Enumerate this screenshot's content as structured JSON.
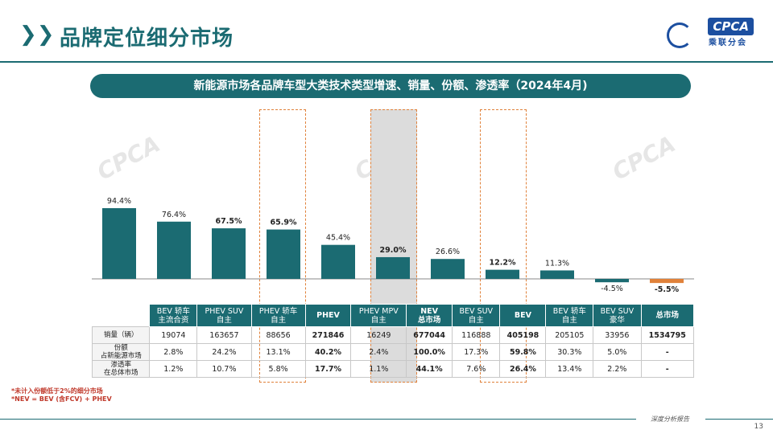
{
  "header": {
    "title": "品牌定位细分市场",
    "chevron_glyph": "❯❯",
    "logo_text": "CPCA",
    "logo_sub": "乘联分会"
  },
  "subtitle": "新能源市场各品牌车型大类技术类型增速、销量、份额、渗透率（2024年4月)",
  "watermark": "CPCA",
  "colors": {
    "teal": "#1b6b72",
    "orange": "#e0813a",
    "highlight_gray": "#dcdcdc",
    "brand_blue": "#1c4fa0"
  },
  "chart_data": {
    "type": "bar",
    "categories": [
      "BEV 轿车 主流合资",
      "PHEV SUV 自主",
      "PHEV 轿车 自主",
      "PHEV",
      "PHEV MPV 自主",
      "NEV 总市场",
      "BEV SUV 自主",
      "BEV",
      "BEV 轿车 自主",
      "BEV SUV 豪华",
      "总市场"
    ],
    "values": [
      94.4,
      76.4,
      67.5,
      65.9,
      45.4,
      29.0,
      26.6,
      12.2,
      11.3,
      -4.5,
      -5.5
    ],
    "value_labels": [
      "94.4%",
      "76.4%",
      "67.5%",
      "65.9%",
      "45.4%",
      "29.0%",
      "26.6%",
      "12.2%",
      "11.3%",
      "-4.5%",
      "-5.5%"
    ],
    "bold_labels": [
      false,
      false,
      true,
      true,
      false,
      true,
      false,
      true,
      false,
      false,
      true
    ],
    "bar_colors": [
      "#1b6b72",
      "#1b6b72",
      "#1b6b72",
      "#1b6b72",
      "#1b6b72",
      "#1b6b72",
      "#1b6b72",
      "#1b6b72",
      "#1b6b72",
      "#1b6b72",
      "#e0813a"
    ],
    "ylim": [
      -10,
      100
    ]
  },
  "table": {
    "headers": [
      [
        "BEV 轿车",
        "主流合资"
      ],
      [
        "PHEV SUV",
        "自主"
      ],
      [
        "PHEV 轿车",
        "自主"
      ],
      [
        "PHEV"
      ],
      [
        "PHEV MPV",
        "自主"
      ],
      [
        "NEV",
        "总市场"
      ],
      [
        "BEV SUV",
        "自主"
      ],
      [
        "BEV"
      ],
      [
        "BEV 轿车",
        "自主"
      ],
      [
        "BEV SUV",
        "豪华"
      ],
      [
        "总市场"
      ]
    ],
    "rows": [
      {
        "label": [
          "销量（辆）"
        ],
        "values": [
          "19074",
          "163657",
          "88656",
          "271846",
          "16249",
          "677044",
          "116888",
          "405198",
          "205105",
          "33956",
          "1534795"
        ]
      },
      {
        "label": [
          "份额",
          "占新能源市场"
        ],
        "values": [
          "2.8%",
          "24.2%",
          "13.1%",
          "40.2%",
          "2.4%",
          "100.0%",
          "17.3%",
          "59.8%",
          "30.3%",
          "5.0%",
          "-"
        ]
      },
      {
        "label": [
          "渗透率",
          "在总体市场"
        ],
        "values": [
          "1.2%",
          "10.7%",
          "5.8%",
          "17.7%",
          "1.1%",
          "44.1%",
          "7.6%",
          "26.4%",
          "13.4%",
          "2.2%",
          "-"
        ]
      }
    ],
    "bold_columns": [
      3,
      5,
      7,
      10
    ]
  },
  "footnotes": [
    "*未计入份额低于2%的细分市场",
    "*NEV = BEV (含FCV) + PHEV"
  ],
  "footer": {
    "report_label": "深度分析报告",
    "page_number": "13"
  }
}
